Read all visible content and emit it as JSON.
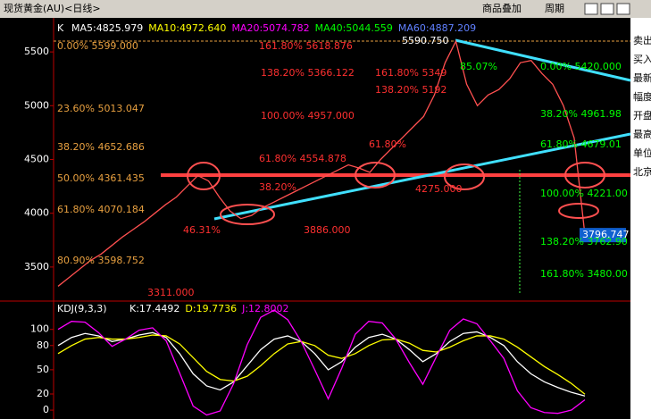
{
  "window_title": "现货黄金(AU)<日线>",
  "toolbar": [
    "商品叠加",
    "周期"
  ],
  "sidebar": [
    "卖出",
    "买入",
    "最新",
    "幅度",
    "开盘",
    "最高",
    "单位",
    "北京"
  ],
  "chart_data": [
    {
      "type": "line",
      "name": "K",
      "legend": [
        {
          "text": "MA5:4825.979",
          "color": "#ffffff"
        },
        {
          "text": "MA10:4972.640",
          "color": "#ffff00"
        },
        {
          "text": "MA20:5074.782",
          "color": "#ff00ff"
        },
        {
          "text": "MA40:5044.559",
          "color": "#00ff00"
        },
        {
          "text": "MA60:4887.209",
          "color": "#6080ff"
        }
      ],
      "ylim": [
        3200,
        5800
      ],
      "yticks": [
        3500,
        4000,
        4500,
        5000,
        5500
      ],
      "series": [
        {
          "color": "#ff5050",
          "values": [
            3321.045,
            3400,
            3480,
            3560,
            3620,
            3700,
            3780,
            3850,
            3920,
            4000,
            4080,
            4150,
            4250,
            4350,
            4300,
            4150,
            4020,
            3950,
            3980,
            4050,
            4100,
            4150,
            4200,
            4250,
            4300,
            4350,
            4400,
            4450,
            4420,
            4380,
            4500,
            4600,
            4700,
            4800,
            4900,
            5100,
            5400,
            5599,
            5200,
            5000,
            5100,
            5150,
            5250,
            5400,
            5420,
            5300,
            5200,
            5000,
            4700,
            3796.747
          ],
          "value_labels": [
            null,
            null,
            null,
            null,
            null,
            null,
            null,
            null,
            null,
            null,
            null,
            null,
            null,
            null,
            null,
            null,
            null,
            null,
            null,
            null,
            null,
            null,
            null,
            null,
            null,
            null,
            null,
            null,
            null,
            null,
            null,
            null,
            null,
            null,
            null,
            null,
            null,
            null,
            null,
            null,
            null,
            null,
            null,
            null,
            null,
            null,
            null,
            null,
            null,
            "3796.747"
          ]
        }
      ],
      "annotations": [
        {
          "text": "0.00% 5599.000",
          "color": "#e8a040"
        },
        {
          "text": "23.60% 5013.047",
          "color": "#e8a040"
        },
        {
          "text": "38.20% 4652.686",
          "color": "#e8a040"
        },
        {
          "text": "50.00% 4361.435",
          "color": "#e8a040"
        },
        {
          "text": "61.80% 4070.184",
          "color": "#e8a040"
        },
        {
          "text": "80.90% 3598.752",
          "color": "#e8a040"
        },
        {
          "text": "3311.000",
          "color": "#ff3030"
        },
        {
          "text": "161.80% 5618.876",
          "color": "#ff3030"
        },
        {
          "text": "138.20% 5366.122",
          "color": "#ff3030"
        },
        {
          "text": "100.00% 4957.000",
          "color": "#ff3030"
        },
        {
          "text": "61.80% 4554.878",
          "color": "#ff3030"
        },
        {
          "text": "38.20%",
          "color": "#ff3030"
        },
        {
          "text": "46.31%",
          "color": "#ff3030"
        },
        {
          "text": "3886.000",
          "color": "#ff3030"
        },
        {
          "text": "161.80% 5349",
          "color": "#ff3030"
        },
        {
          "text": "138.20% 5192",
          "color": "#ff3030"
        },
        {
          "text": "61.80%",
          "color": "#ff3030"
        },
        {
          "text": "4275.000",
          "color": "#ff3030"
        },
        {
          "text": "5590.750",
          "color": "#ffffff"
        },
        {
          "text": "85.07%",
          "color": "#00ff00"
        },
        {
          "text": "0.00% 5420.000",
          "color": "#00ff00"
        },
        {
          "text": "38.20% 4961.98",
          "color": "#00ff00"
        },
        {
          "text": "61.80% 4679.01",
          "color": "#00ff00"
        },
        {
          "text": "100.00% 4221.00",
          "color": "#00ff00"
        },
        {
          "text": "138.20% 3762.90",
          "color": "#00ff00"
        },
        {
          "text": "161.80% 3480.00",
          "color": "#00ff00"
        }
      ]
    },
    {
      "type": "line",
      "name": "KDJ(9,3,3)",
      "legend": [
        {
          "text": "K:17.4492",
          "color": "#ffffff"
        },
        {
          "text": "D:19.7736",
          "color": "#ffff00"
        },
        {
          "text": "J:12.8002",
          "color": "#ff00ff"
        }
      ],
      "ylim": [
        -11,
        134
      ],
      "yticks": [
        0,
        20,
        50,
        80,
        100
      ],
      "series": [
        {
          "color": "#ffffff",
          "values": [
            80,
            90,
            95,
            92,
            85,
            88,
            93,
            96,
            90,
            70,
            45,
            30,
            25,
            35,
            55,
            75,
            88,
            92,
            85,
            70,
            50,
            60,
            78,
            90,
            94,
            88,
            75,
            60,
            70,
            85,
            95,
            97,
            90,
            80,
            60,
            45,
            35,
            28,
            22,
            17.4492
          ]
        },
        {
          "color": "#ffff00",
          "values": [
            70,
            80,
            88,
            90,
            88,
            88,
            90,
            93,
            92,
            82,
            65,
            48,
            38,
            36,
            42,
            55,
            70,
            82,
            85,
            80,
            68,
            64,
            70,
            80,
            87,
            88,
            83,
            74,
            72,
            78,
            86,
            92,
            92,
            88,
            78,
            66,
            54,
            44,
            33,
            19.7736
          ]
        },
        {
          "color": "#ff00ff",
          "values": [
            100,
            110,
            109,
            96,
            79,
            88,
            99,
            102,
            86,
            46,
            5,
            -6,
            -1,
            33,
            81,
            115,
            124,
            112,
            85,
            50,
            14,
            52,
            94,
            110,
            108,
            88,
            59,
            32,
            66,
            99,
            113,
            107,
            86,
            64,
            24,
            3,
            -3,
            -4,
            0,
            12.8002
          ]
        }
      ]
    }
  ]
}
